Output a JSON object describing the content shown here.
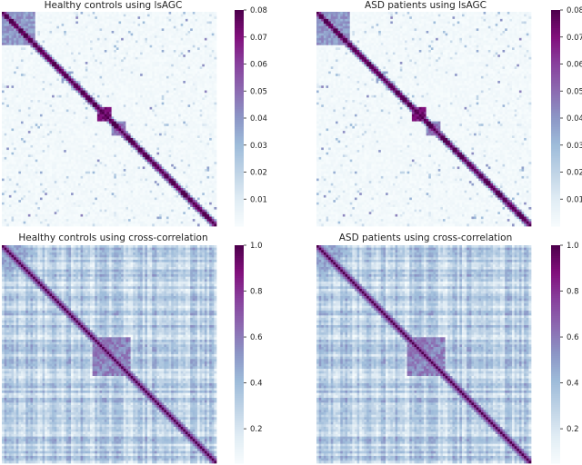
{
  "chart_data": [
    {
      "type": "heatmap",
      "title": "Healthy controls using lsAGC",
      "measure": "lsAGC",
      "group": "Healthy controls",
      "n_regions": 90,
      "colormap": "BuPu",
      "vmin": 0.0,
      "vmax": 0.08,
      "colorbar_ticks": [
        "0.01",
        "0.02",
        "0.03",
        "0.04",
        "0.05",
        "0.06",
        "0.07",
        "0.08"
      ],
      "background_level": 0.004,
      "diagonal_value": 0.08,
      "blocks": [
        {
          "start": 0,
          "end": 14,
          "value": 0.042
        },
        {
          "start": 40,
          "end": 46,
          "value": 0.072
        },
        {
          "start": 46,
          "end": 52,
          "value": 0.05
        }
      ],
      "pattern_seed": 11
    },
    {
      "type": "heatmap",
      "title": "ASD patients using lsAGC",
      "measure": "lsAGC",
      "group": "ASD patients",
      "n_regions": 90,
      "colormap": "BuPu",
      "vmin": 0.0,
      "vmax": 0.08,
      "colorbar_ticks": [
        "0.01",
        "0.02",
        "0.03",
        "0.04",
        "0.05",
        "0.06",
        "0.07",
        "0.08"
      ],
      "background_level": 0.004,
      "diagonal_value": 0.08,
      "blocks": [
        {
          "start": 0,
          "end": 14,
          "value": 0.042
        },
        {
          "start": 40,
          "end": 46,
          "value": 0.072
        },
        {
          "start": 46,
          "end": 52,
          "value": 0.05
        }
      ],
      "pattern_seed": 11
    },
    {
      "type": "heatmap",
      "title": "Healthy controls using cross-correlation",
      "measure": "cross-correlation",
      "group": "Healthy controls",
      "n_regions": 90,
      "colormap": "BuPu",
      "vmin": 0.05,
      "vmax": 1.0,
      "colorbar_ticks": [
        "0.2",
        "0.4",
        "0.6",
        "0.8",
        "1.0"
      ],
      "background_level": 0.3,
      "diagonal_value": 1.0,
      "blocks": [
        {
          "start": 0,
          "end": 10,
          "value": 0.5
        },
        {
          "start": 38,
          "end": 54,
          "value": 0.62
        }
      ],
      "pattern_seed": 29
    },
    {
      "type": "heatmap",
      "title": "ASD patients using cross-correlation",
      "measure": "cross-correlation",
      "group": "ASD patients",
      "n_regions": 90,
      "colormap": "BuPu",
      "vmin": 0.05,
      "vmax": 1.0,
      "colorbar_ticks": [
        "0.2",
        "0.4",
        "0.6",
        "0.8",
        "1.0"
      ],
      "background_level": 0.3,
      "diagonal_value": 1.0,
      "blocks": [
        {
          "start": 0,
          "end": 10,
          "value": 0.5
        },
        {
          "start": 38,
          "end": 54,
          "value": 0.62
        }
      ],
      "pattern_seed": 29
    }
  ],
  "colors": {
    "colormap_stops": [
      "#f7fcfd",
      "#e0ecf4",
      "#bfd3e6",
      "#9ebcda",
      "#8c96c6",
      "#8c6bb1",
      "#88419d",
      "#810f7c",
      "#4d004b"
    ]
  }
}
